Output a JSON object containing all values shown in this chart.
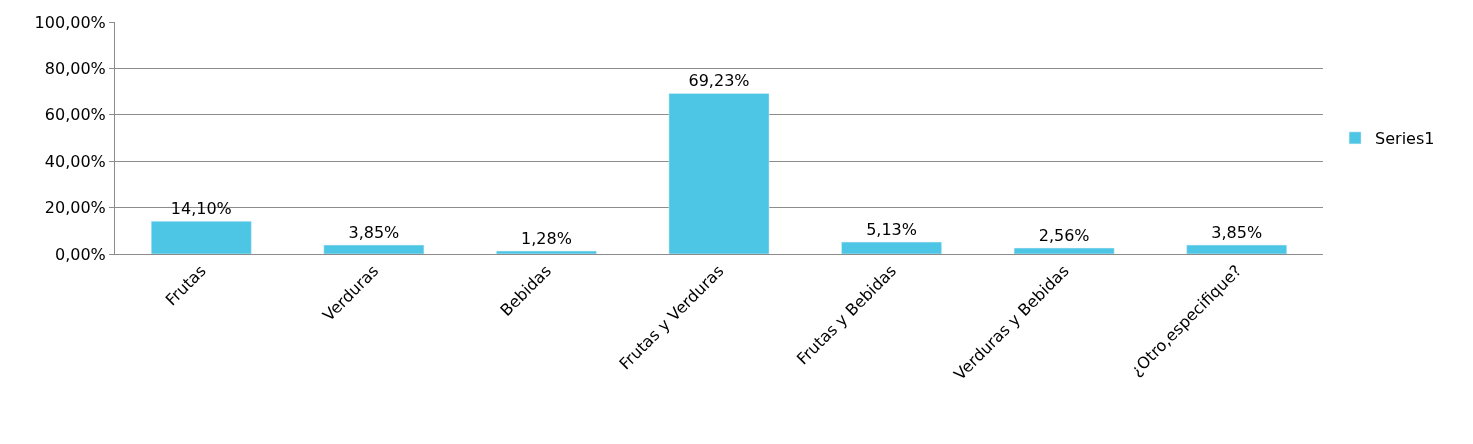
{
  "chart_data": {
    "type": "bar",
    "categories": [
      "Frutas",
      "Verduras",
      "Bebidas",
      "Frutas y Verduras",
      "Frutas y Bebidas",
      "Verduras y Bebidas",
      "¿Otro,especifique?"
    ],
    "series": [
      {
        "name": "Series1",
        "color": "#4cc6e4",
        "values": [
          14.1,
          3.85,
          1.28,
          69.23,
          5.13,
          2.56,
          3.85
        ],
        "value_labels": [
          "14,10%",
          "3,85%",
          "1,28%",
          "69,23%",
          "5,13%",
          "2,56%",
          "3,85%"
        ]
      }
    ],
    "ylim": [
      0,
      100
    ],
    "yticks": [
      {
        "value": 0,
        "label": "0,00%"
      },
      {
        "value": 20,
        "label": "20,00%"
      },
      {
        "value": 40,
        "label": "40,00%"
      },
      {
        "value": 60,
        "label": "60,00%"
      },
      {
        "value": 80,
        "label": "80,00%"
      },
      {
        "value": 100,
        "label": "100,00%"
      }
    ],
    "grid": "y",
    "legend": "right"
  }
}
